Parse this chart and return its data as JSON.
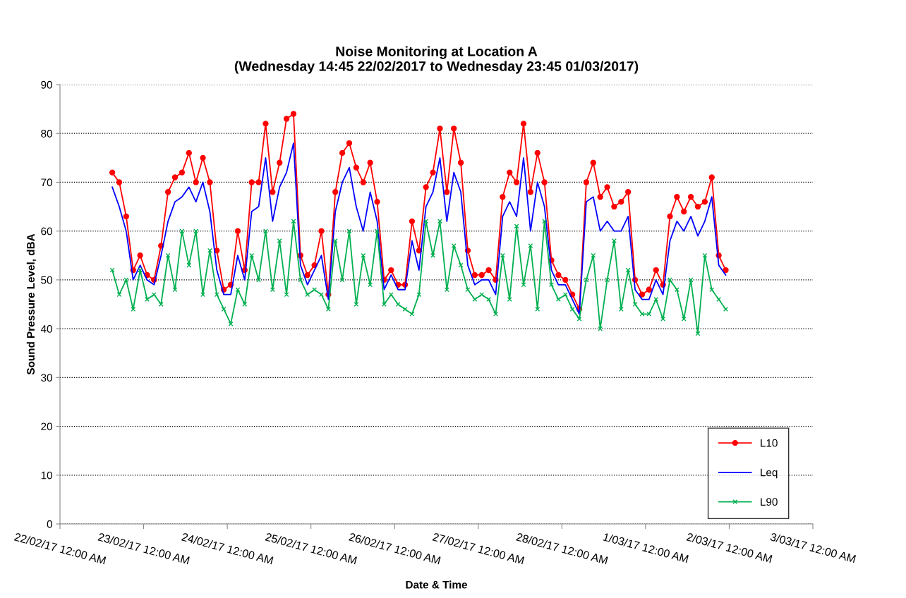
{
  "chart_data": {
    "type": "line",
    "title": "Noise Monitoring at Location A\n(Wednesday 14:45 22/02/2017 to Wednesday 23:45 01/03/2017)",
    "xlabel": "Date & Time",
    "ylabel": "Sound Pressure Level, dBA",
    "x": [
      "2017-02-22T15:00",
      "2017-02-22T17:00",
      "2017-02-22T19:00",
      "2017-02-22T21:00",
      "2017-02-22T23:00",
      "2017-02-23T01:00",
      "2017-02-23T03:00",
      "2017-02-23T05:00",
      "2017-02-23T07:00",
      "2017-02-23T09:00",
      "2017-02-23T11:00",
      "2017-02-23T13:00",
      "2017-02-23T15:00",
      "2017-02-23T17:00",
      "2017-02-23T19:00",
      "2017-02-23T21:00",
      "2017-02-23T23:00",
      "2017-02-24T01:00",
      "2017-02-24T03:00",
      "2017-02-24T05:00",
      "2017-02-24T07:00",
      "2017-02-24T09:00",
      "2017-02-24T11:00",
      "2017-02-24T13:00",
      "2017-02-24T15:00",
      "2017-02-24T17:00",
      "2017-02-24T19:00",
      "2017-02-24T21:00",
      "2017-02-24T23:00",
      "2017-02-25T01:00",
      "2017-02-25T03:00",
      "2017-02-25T05:00",
      "2017-02-25T07:00",
      "2017-02-25T09:00",
      "2017-02-25T11:00",
      "2017-02-25T13:00",
      "2017-02-25T15:00",
      "2017-02-25T17:00",
      "2017-02-25T19:00",
      "2017-02-25T21:00",
      "2017-02-25T23:00",
      "2017-02-26T01:00",
      "2017-02-26T03:00",
      "2017-02-26T05:00",
      "2017-02-26T07:00",
      "2017-02-26T09:00",
      "2017-02-26T11:00",
      "2017-02-26T13:00",
      "2017-02-26T15:00",
      "2017-02-26T17:00",
      "2017-02-26T19:00",
      "2017-02-26T21:00",
      "2017-02-26T23:00",
      "2017-02-27T01:00",
      "2017-02-27T03:00",
      "2017-02-27T05:00",
      "2017-02-27T07:00",
      "2017-02-27T09:00",
      "2017-02-27T11:00",
      "2017-02-27T13:00",
      "2017-02-27T15:00",
      "2017-02-27T17:00",
      "2017-02-27T19:00",
      "2017-02-27T21:00",
      "2017-02-27T23:00",
      "2017-02-28T01:00",
      "2017-02-28T03:00",
      "2017-02-28T05:00",
      "2017-02-28T07:00",
      "2017-02-28T09:00",
      "2017-02-28T11:00",
      "2017-02-28T13:00",
      "2017-02-28T15:00",
      "2017-02-28T17:00",
      "2017-02-28T19:00",
      "2017-02-28T21:00",
      "2017-02-28T23:00",
      "2017-03-01T01:00",
      "2017-03-01T03:00",
      "2017-03-01T05:00",
      "2017-03-01T07:00",
      "2017-03-01T09:00",
      "2017-03-01T11:00",
      "2017-03-01T13:00",
      "2017-03-01T15:00",
      "2017-03-01T17:00",
      "2017-03-01T19:00",
      "2017-03-01T21:00",
      "2017-03-01T23:00"
    ],
    "series": [
      {
        "name": "L10",
        "color": "#ff0000",
        "marker": "circle",
        "values": [
          72,
          70,
          63,
          52,
          55,
          51,
          50,
          57,
          68,
          71,
          72,
          76,
          70,
          75,
          70,
          56,
          48,
          49,
          60,
          52,
          70,
          70,
          82,
          68,
          74,
          83,
          84,
          55,
          51,
          53,
          60,
          47,
          68,
          76,
          78,
          73,
          70,
          74,
          66,
          50,
          52,
          49,
          49,
          62,
          56,
          69,
          72,
          81,
          68,
          81,
          74,
          56,
          51,
          51,
          52,
          50,
          67,
          72,
          70,
          82,
          68,
          76,
          70,
          54,
          51,
          50,
          47,
          44,
          70,
          74,
          67,
          69,
          65,
          66,
          68,
          50,
          47,
          48,
          52,
          49,
          63,
          67,
          64,
          67,
          65,
          66,
          71,
          55,
          52
        ]
      },
      {
        "name": "Leq",
        "color": "#0000ff",
        "marker": "none",
        "values": [
          69,
          65,
          60,
          50,
          53,
          50,
          49,
          55,
          62,
          66,
          67,
          69,
          66,
          70,
          64,
          52,
          47,
          47,
          55,
          50,
          64,
          65,
          75,
          62,
          69,
          72,
          78,
          53,
          49,
          52,
          55,
          46,
          64,
          70,
          73,
          65,
          60,
          68,
          62,
          48,
          51,
          48,
          48,
          58,
          52,
          65,
          68,
          75,
          62,
          72,
          68,
          53,
          49,
          50,
          50,
          47,
          63,
          66,
          63,
          75,
          60,
          70,
          65,
          52,
          49,
          49,
          46,
          43,
          66,
          67,
          60,
          62,
          60,
          60,
          63,
          48,
          46,
          46,
          50,
          47,
          58,
          62,
          60,
          63,
          59,
          62,
          67,
          53,
          51
        ]
      },
      {
        "name": "L90",
        "color": "#00b050",
        "marker": "cross",
        "values": [
          52,
          47,
          50,
          44,
          52,
          46,
          47,
          45,
          55,
          48,
          60,
          53,
          60,
          47,
          56,
          47,
          44,
          41,
          48,
          45,
          55,
          50,
          60,
          48,
          58,
          47,
          62,
          50,
          47,
          48,
          47,
          44,
          58,
          50,
          60,
          45,
          55,
          49,
          60,
          45,
          47,
          45,
          44,
          43,
          47,
          62,
          55,
          62,
          48,
          57,
          53,
          48,
          46,
          47,
          46,
          43,
          55,
          46,
          61,
          49,
          57,
          44,
          62,
          49,
          46,
          47,
          44,
          42,
          50,
          55,
          40,
          50,
          58,
          44,
          52,
          45,
          43,
          43,
          46,
          42,
          50,
          48,
          42,
          50,
          39,
          55,
          48,
          46,
          44
        ]
      }
    ],
    "xlim": [
      "2017-02-22",
      "2017-03-03"
    ],
    "xticks": [
      {
        "value": "2017-02-22",
        "label": "22/02/17 12:00 AM"
      },
      {
        "value": "2017-02-23",
        "label": "23/02/17 12:00 AM"
      },
      {
        "value": "2017-02-24",
        "label": "24/02/17 12:00 AM"
      },
      {
        "value": "2017-02-25",
        "label": "25/02/17 12:00 AM"
      },
      {
        "value": "2017-02-26",
        "label": "26/02/17 12:00 AM"
      },
      {
        "value": "2017-02-27",
        "label": "27/02/17 12:00 AM"
      },
      {
        "value": "2017-02-28",
        "label": "28/02/17 12:00 AM"
      },
      {
        "value": "2017-03-01",
        "label": "1/03/17 12:00 AM"
      },
      {
        "value": "2017-03-02",
        "label": "2/03/17 12:00 AM"
      },
      {
        "value": "2017-03-03",
        "label": "3/03/17 12:00 AM"
      }
    ],
    "ylim": [
      0,
      90
    ],
    "yticks": [
      0,
      10,
      20,
      30,
      40,
      50,
      60,
      70,
      80,
      90
    ],
    "grid": "y",
    "legend": "bottom right",
    "line_style": "solid"
  }
}
